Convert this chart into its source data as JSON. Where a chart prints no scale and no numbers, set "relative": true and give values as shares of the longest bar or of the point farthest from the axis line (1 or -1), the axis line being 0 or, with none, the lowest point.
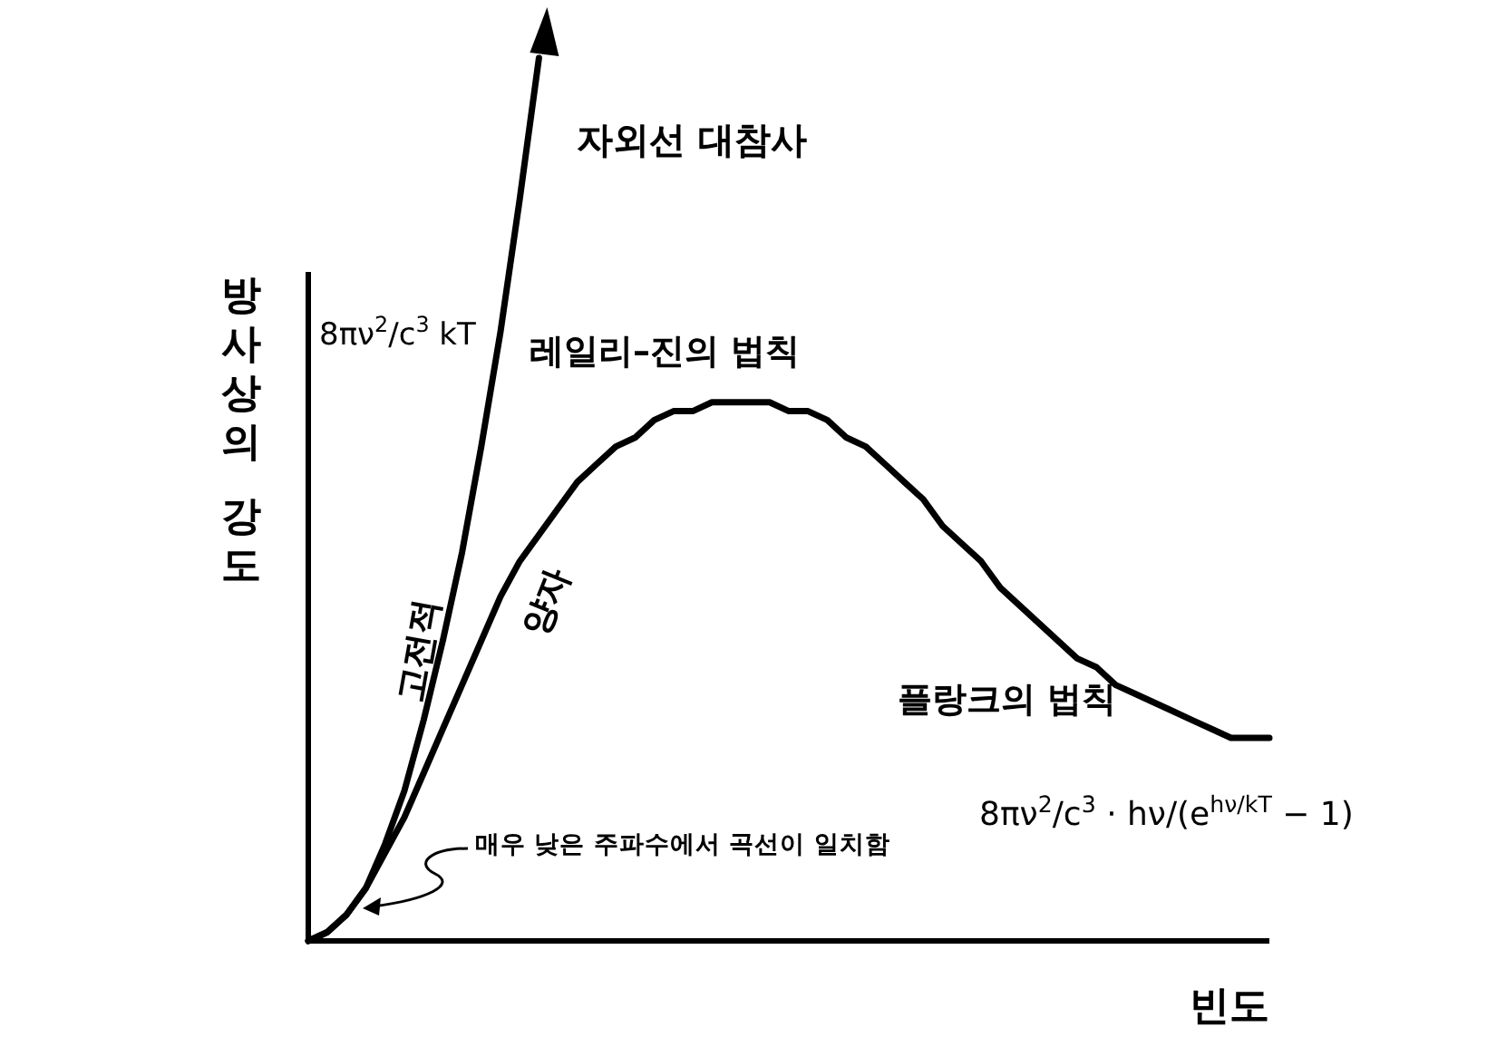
{
  "chart_data": {
    "type": "line",
    "relative": true,
    "xlabel": "빈도",
    "ylabel": "방사상의 강도",
    "categories": [
      null,
      null,
      null,
      null,
      null,
      null,
      null,
      null,
      null,
      null,
      null,
      null,
      null,
      null,
      null,
      null,
      null,
      null,
      null,
      null,
      null,
      null,
      null,
      null,
      null,
      null,
      null,
      null,
      null,
      null,
      null,
      null,
      null,
      null,
      null,
      null,
      null,
      null,
      null,
      null,
      null,
      null,
      null,
      null,
      null,
      null,
      null,
      null,
      null,
      null,
      null
    ],
    "series": [
      {
        "name": "레일리–진의 법칙",
        "color": "#000000",
        "values": [
          0,
          0.01,
          0.03,
          0.06,
          0.11,
          0.17,
          0.25,
          0.34,
          0.44,
          0.56,
          0.69,
          0.84,
          1,
          null,
          null,
          null,
          null,
          null,
          null,
          null,
          null,
          null,
          null,
          null,
          null,
          null,
          null,
          null,
          null,
          null,
          null,
          null,
          null,
          null,
          null,
          null,
          null,
          null,
          null,
          null,
          null,
          null,
          null,
          null,
          null,
          null,
          null,
          null,
          null,
          null,
          null
        ]
      },
      {
        "name": "플랑크의 법칙",
        "color": "#000000",
        "values": [
          0,
          0.01,
          0.03,
          0.06,
          0.1,
          0.14,
          0.19,
          0.24,
          0.29,
          0.34,
          0.39,
          0.43,
          0.46,
          0.49,
          0.52,
          0.54,
          0.56,
          0.57,
          0.59,
          0.6,
          0.6,
          0.61,
          0.61,
          0.61,
          0.61,
          0.6,
          0.6,
          0.59,
          0.57,
          0.56,
          0.54,
          0.52,
          0.5,
          0.47,
          0.45,
          0.43,
          0.4,
          0.38,
          0.36,
          0.34,
          0.32,
          0.31,
          0.29,
          0.28,
          0.27,
          0.26,
          0.25,
          0.24,
          0.23,
          0.23,
          0.23
        ]
      }
    ],
    "annotations": [
      "자외선 대참사",
      "8πν$^{2}$/c$^{3}$ kT",
      "고전적",
      "양자",
      "8πν$^{2}$/c$^{3}$ · hν/(e$^{hν/kT}$ − 1)",
      "매우 낮은 주파수에서 곡선이 일치함"
    ]
  }
}
